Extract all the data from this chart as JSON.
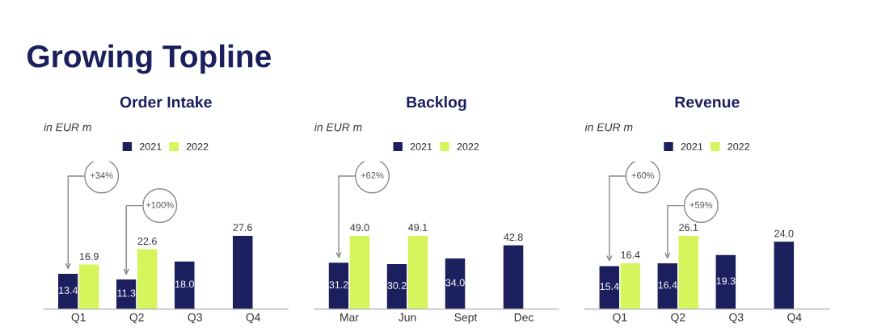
{
  "chart_data": [
    {
      "type": "bar",
      "title": "Order Intake",
      "subtitle": "in EUR m",
      "categories": [
        "Q1",
        "Q2",
        "Q3",
        "Q4"
      ],
      "series": [
        {
          "name": "2021",
          "color": "#1b1f5e",
          "values": [
            13.4,
            11.3,
            18.0,
            27.6
          ],
          "value_labels": [
            "13.4",
            "11.3",
            "18.0",
            "27.6"
          ]
        },
        {
          "name": "2022",
          "color": "#d6f55c",
          "values": [
            16.9,
            22.6,
            null,
            null
          ],
          "value_labels": [
            "16.9",
            "22.6",
            null,
            null
          ]
        }
      ],
      "legend": "top",
      "tick_labels": "x",
      "annotations": [
        "Growing Topline",
        "+34%",
        "+100%"
      ]
    },
    {
      "type": "bar",
      "title": "Backlog",
      "subtitle": "in EUR m",
      "categories": [
        "Mar",
        "Jun",
        "Sept",
        "Dec"
      ],
      "series": [
        {
          "name": "2021",
          "color": "#1b1f5e",
          "values": [
            31.2,
            30.2,
            34.0,
            42.8
          ],
          "value_labels": [
            "31.2",
            "30.2",
            "34.0",
            "42.8"
          ]
        },
        {
          "name": "2022",
          "color": "#d6f55c",
          "values": [
            49.0,
            49.1,
            null,
            null
          ],
          "value_labels": [
            "49.0",
            "49.1",
            null,
            null
          ]
        }
      ],
      "legend": "top",
      "tick_labels": "x",
      "annotations": [
        "+62%"
      ]
    },
    {
      "type": "bar",
      "title": "Revenue",
      "subtitle": "in EUR m",
      "categories": [
        "Q1",
        "Q2",
        "Q3",
        "Q4"
      ],
      "series": [
        {
          "name": "2021",
          "color": "#1b1f5e",
          "values": [
            15.4,
            16.4,
            19.3,
            24.0
          ],
          "value_labels": [
            "15.4",
            "16.4",
            "19.3",
            "24.0"
          ]
        },
        {
          "name": "2022",
          "color": "#d6f55c",
          "values": [
            16.4,
            26.1,
            null,
            null
          ],
          "value_labels": [
            "16.4",
            "26.1",
            null,
            null
          ]
        }
      ],
      "legend": "top",
      "tick_labels": "x",
      "annotations": [
        "+60%",
        "+59%"
      ]
    }
  ]
}
